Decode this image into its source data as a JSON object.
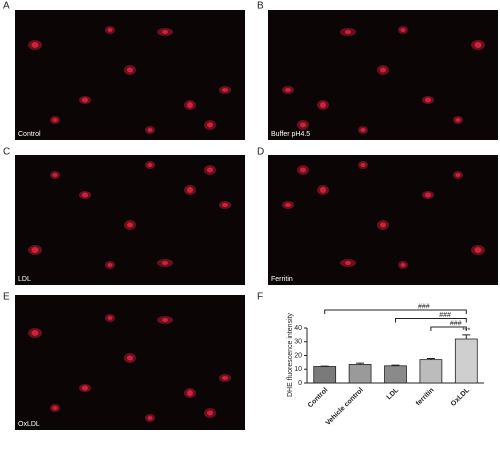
{
  "panels": [
    {
      "letter": "A",
      "caption": "Control"
    },
    {
      "letter": "B",
      "caption": "Buffer pH4.5"
    },
    {
      "letter": "C",
      "caption": "LDL"
    },
    {
      "letter": "D",
      "caption": "Ferritin"
    },
    {
      "letter": "E",
      "caption": "OxLDL"
    },
    {
      "letter": "F"
    }
  ],
  "chart_data": {
    "type": "bar",
    "ylabel": "DHE fluorescence intensity",
    "categories": [
      "Control",
      "Vehicle control",
      "LDL",
      "ferritin",
      "OxLDL"
    ],
    "values": [
      12,
      13.5,
      12.5,
      17,
      32
    ],
    "errors": [
      0.3,
      1,
      0.5,
      0.8,
      3
    ],
    "colors": [
      "#7a7a7a",
      "#9a9a9a",
      "#8a8a8a",
      "#bcbcbc",
      "#cfcfcf"
    ],
    "ylim": [
      0,
      40
    ],
    "yticks": [
      0,
      10,
      20,
      30,
      40
    ],
    "stars": "***",
    "comparison_labels": [
      "###",
      "###",
      "###"
    ]
  }
}
